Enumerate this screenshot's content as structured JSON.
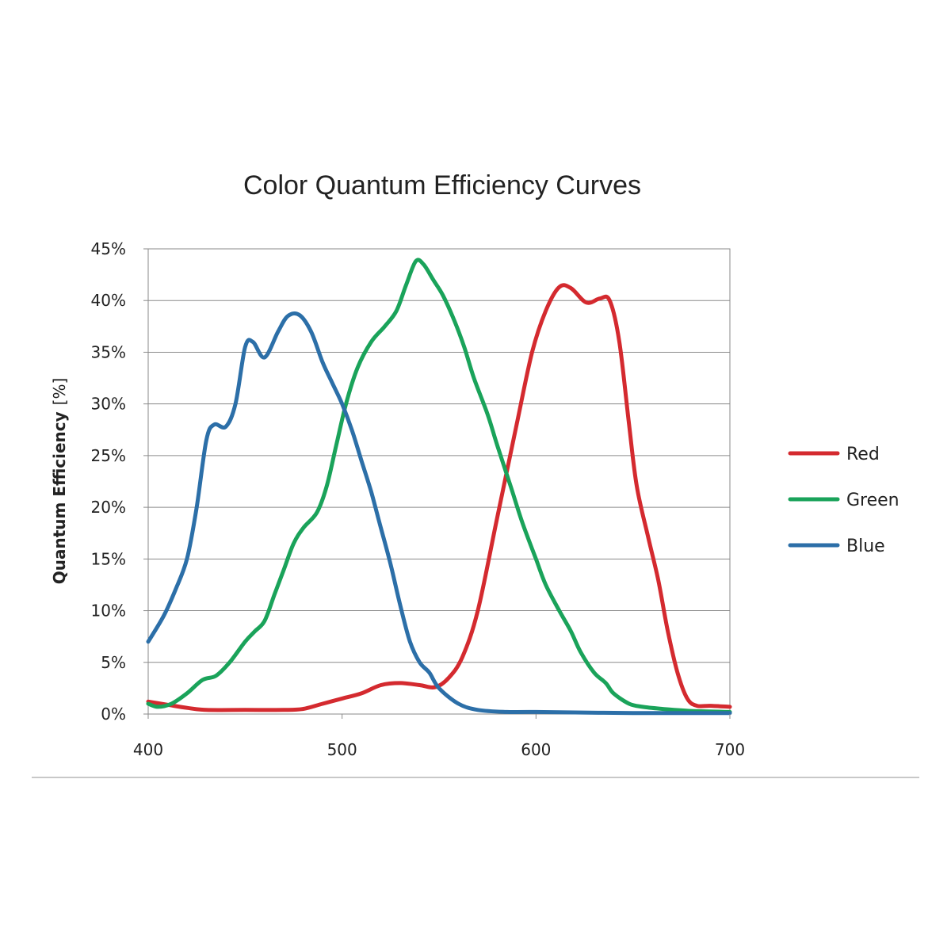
{
  "chart_data": {
    "type": "line",
    "title": "Color Quantum Efficiency Curves",
    "xlabel": "",
    "ylabel": "Quantum Efficiency",
    "ylabel_unit": "[%]",
    "xlim": [
      400,
      700
    ],
    "ylim": [
      0,
      45
    ],
    "x_ticks": [
      400,
      500,
      600,
      700
    ],
    "x_tick_labels": [
      "400",
      "500",
      "600",
      "700"
    ],
    "y_ticks": [
      0,
      5,
      10,
      15,
      20,
      25,
      30,
      35,
      40,
      45
    ],
    "y_tick_labels": [
      "0%",
      "5%",
      "10%",
      "15%",
      "20%",
      "25%",
      "30%",
      "35%",
      "40%",
      "45%"
    ],
    "grid": "horizontal",
    "legend_position": "right",
    "series": [
      {
        "name": "Red",
        "color": "#d42a2f",
        "points": [
          [
            400,
            1.2
          ],
          [
            410,
            0.9
          ],
          [
            420,
            0.6
          ],
          [
            430,
            0.4
          ],
          [
            450,
            0.4
          ],
          [
            470,
            0.4
          ],
          [
            480,
            0.5
          ],
          [
            490,
            1.0
          ],
          [
            500,
            1.5
          ],
          [
            510,
            2.0
          ],
          [
            520,
            2.8
          ],
          [
            530,
            3.0
          ],
          [
            540,
            2.8
          ],
          [
            548,
            2.6
          ],
          [
            555,
            3.5
          ],
          [
            562,
            5.5
          ],
          [
            570,
            10
          ],
          [
            580,
            19
          ],
          [
            590,
            28
          ],
          [
            598,
            35
          ],
          [
            605,
            39
          ],
          [
            612,
            41.3
          ],
          [
            618,
            41.2
          ],
          [
            626,
            39.8
          ],
          [
            633,
            40.2
          ],
          [
            638,
            40.0
          ],
          [
            643,
            36
          ],
          [
            648,
            28
          ],
          [
            652,
            22
          ],
          [
            658,
            17
          ],
          [
            663,
            13
          ],
          [
            668,
            8
          ],
          [
            673,
            4
          ],
          [
            678,
            1.5
          ],
          [
            683,
            0.8
          ],
          [
            690,
            0.8
          ],
          [
            700,
            0.7
          ]
        ]
      },
      {
        "name": "Green",
        "color": "#1aa35a",
        "points": [
          [
            400,
            1.0
          ],
          [
            405,
            0.7
          ],
          [
            412,
            1.0
          ],
          [
            420,
            2.0
          ],
          [
            428,
            3.3
          ],
          [
            435,
            3.7
          ],
          [
            442,
            5.0
          ],
          [
            450,
            7.0
          ],
          [
            455,
            8.0
          ],
          [
            460,
            9.0
          ],
          [
            465,
            11.5
          ],
          [
            470,
            14.0
          ],
          [
            475,
            16.5
          ],
          [
            480,
            18.0
          ],
          [
            487,
            19.5
          ],
          [
            492,
            22.0
          ],
          [
            497,
            26.0
          ],
          [
            502,
            30.0
          ],
          [
            508,
            33.5
          ],
          [
            515,
            36.0
          ],
          [
            522,
            37.5
          ],
          [
            528,
            39.0
          ],
          [
            533,
            41.5
          ],
          [
            538,
            43.8
          ],
          [
            542,
            43.5
          ],
          [
            547,
            42.0
          ],
          [
            552,
            40.5
          ],
          [
            558,
            38.0
          ],
          [
            563,
            35.5
          ],
          [
            568,
            32.5
          ],
          [
            575,
            29.0
          ],
          [
            580,
            26.0
          ],
          [
            587,
            22.0
          ],
          [
            593,
            18.5
          ],
          [
            600,
            15.0
          ],
          [
            605,
            12.5
          ],
          [
            612,
            10.0
          ],
          [
            618,
            8.0
          ],
          [
            623,
            6.0
          ],
          [
            630,
            4.0
          ],
          [
            636,
            3.0
          ],
          [
            640,
            2.0
          ],
          [
            648,
            1.0
          ],
          [
            655,
            0.7
          ],
          [
            665,
            0.5
          ],
          [
            680,
            0.3
          ],
          [
            700,
            0.2
          ]
        ]
      },
      {
        "name": "Blue",
        "color": "#2c6fa8",
        "points": [
          [
            400,
            7.0
          ],
          [
            408,
            9.5
          ],
          [
            414,
            12.0
          ],
          [
            420,
            15.0
          ],
          [
            425,
            20.0
          ],
          [
            430,
            26.5
          ],
          [
            434,
            28.0
          ],
          [
            440,
            27.8
          ],
          [
            445,
            30.0
          ],
          [
            450,
            35.5
          ],
          [
            454,
            36.0
          ],
          [
            460,
            34.5
          ],
          [
            467,
            37.0
          ],
          [
            472,
            38.5
          ],
          [
            478,
            38.6
          ],
          [
            484,
            37.0
          ],
          [
            490,
            34.0
          ],
          [
            495,
            32.0
          ],
          [
            500,
            30.0
          ],
          [
            505,
            27.5
          ],
          [
            510,
            24.5
          ],
          [
            515,
            21.5
          ],
          [
            520,
            18.0
          ],
          [
            525,
            14.5
          ],
          [
            530,
            10.5
          ],
          [
            535,
            7.0
          ],
          [
            540,
            5.0
          ],
          [
            545,
            4.0
          ],
          [
            550,
            2.5
          ],
          [
            560,
            1.0
          ],
          [
            570,
            0.4
          ],
          [
            585,
            0.2
          ],
          [
            600,
            0.2
          ],
          [
            650,
            0.1
          ],
          [
            700,
            0.1
          ]
        ]
      }
    ]
  }
}
